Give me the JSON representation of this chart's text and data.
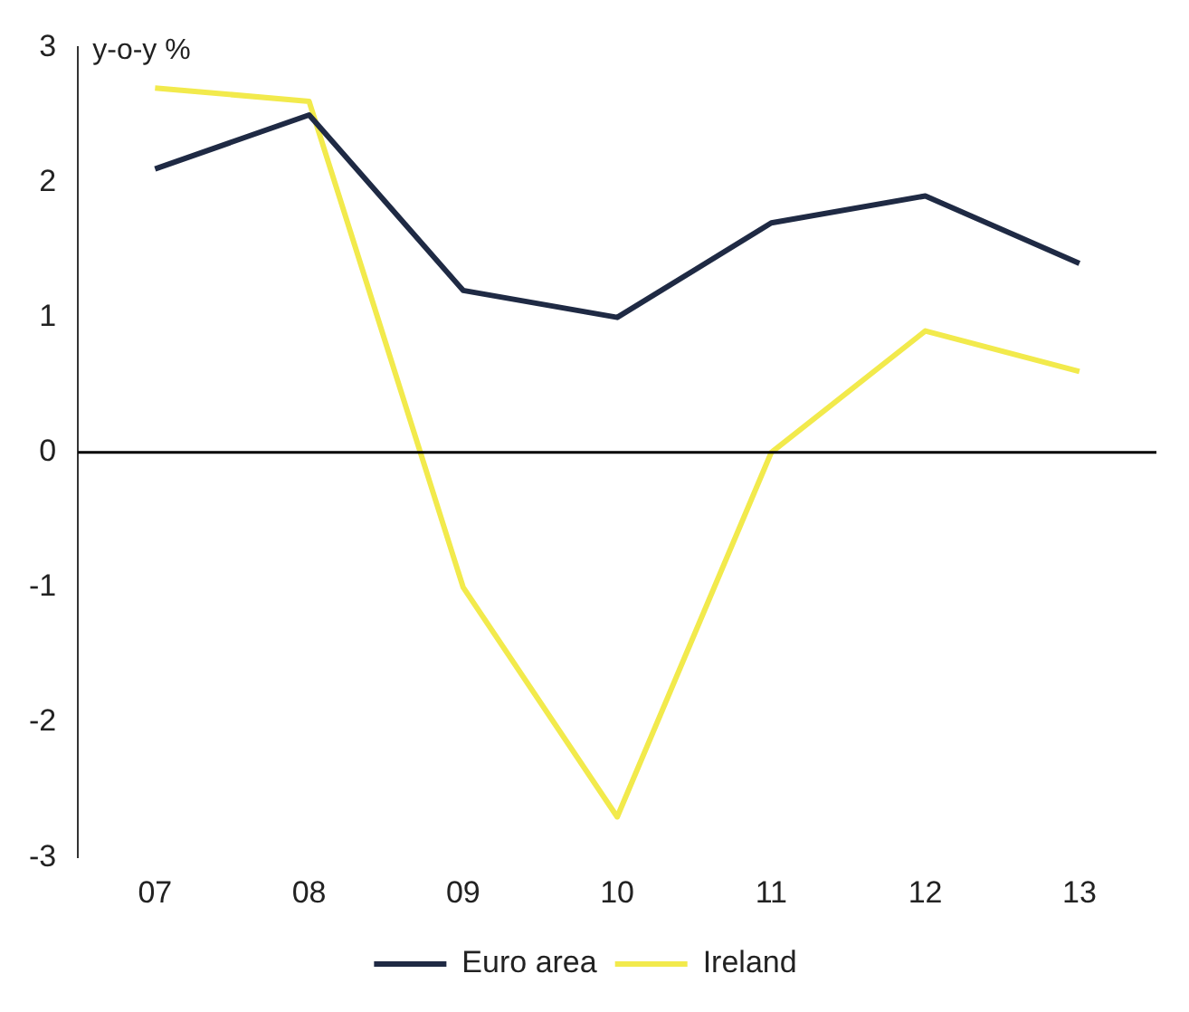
{
  "chart_data": {
    "type": "line",
    "ylabel": "y-o-y %",
    "categories": [
      "07",
      "08",
      "09",
      "10",
      "11",
      "12",
      "13"
    ],
    "series": [
      {
        "name": "Euro area",
        "color": "#1f2a44",
        "values": [
          2.1,
          2.5,
          1.2,
          1.0,
          1.7,
          1.9,
          1.4
        ]
      },
      {
        "name": "Ireland",
        "color": "#f2ea4c",
        "values": [
          2.7,
          2.6,
          -1.0,
          -2.7,
          0.0,
          0.9,
          0.6
        ]
      }
    ],
    "ylim": [
      -3,
      3
    ],
    "yticks": [
      -3,
      -2,
      -1,
      0,
      1,
      2,
      3
    ],
    "grid": false,
    "legend": "bottom",
    "marker": "none",
    "line_style": "solid",
    "ref_lines": [
      {
        "axis": "y",
        "value": 0,
        "color": "#000000"
      }
    ]
  }
}
